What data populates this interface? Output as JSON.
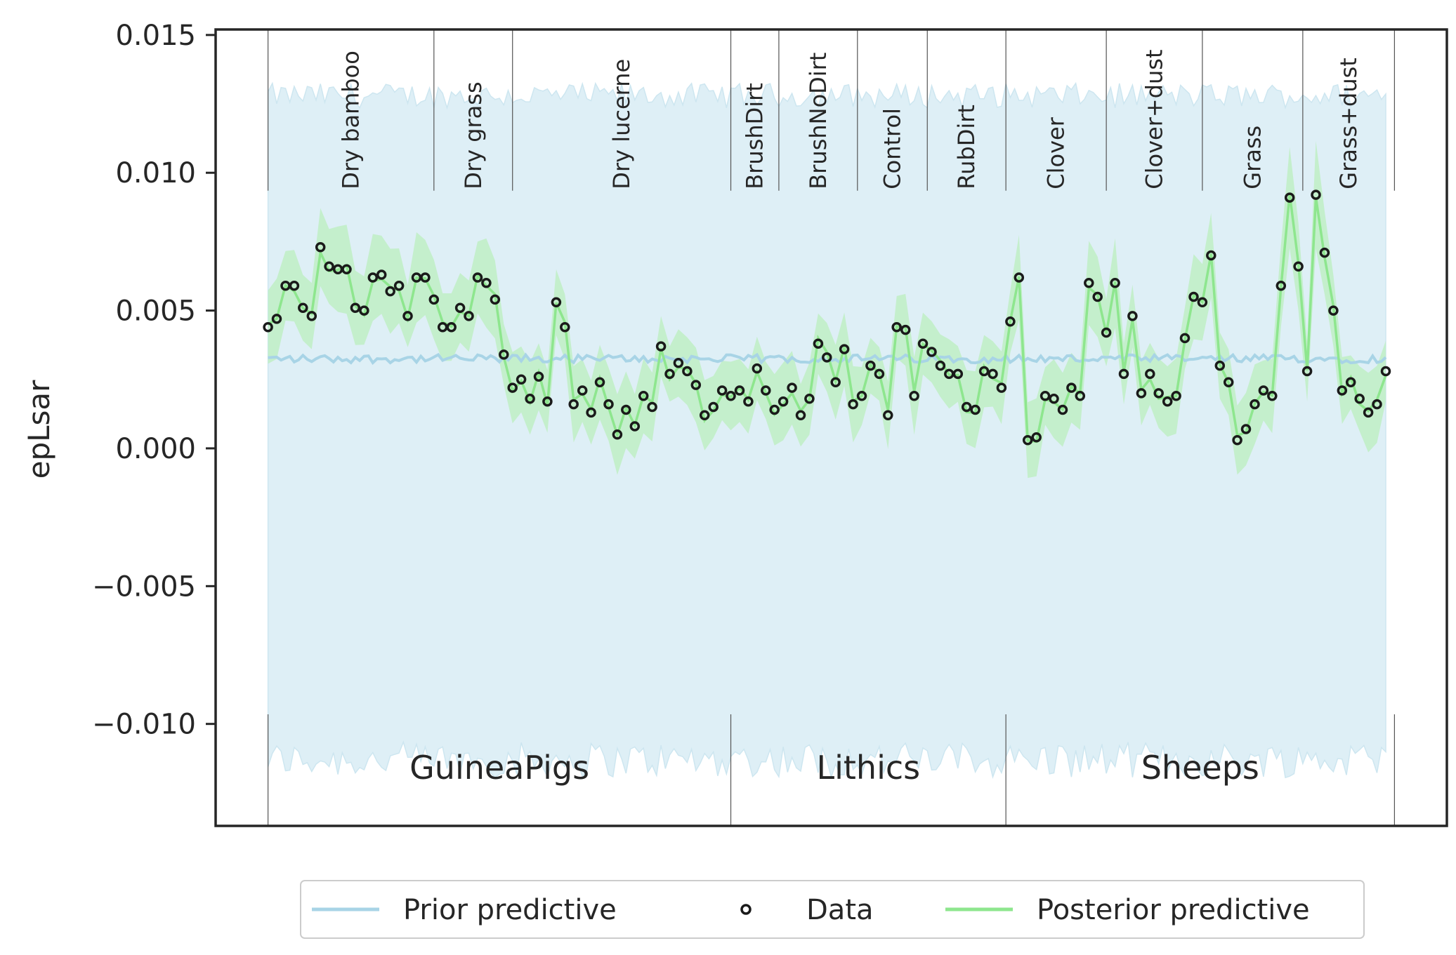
{
  "chart_data": {
    "type": "line",
    "title": "",
    "xlabel": "",
    "ylabel": "epLsar",
    "ylim": [
      -0.0137,
      0.0152
    ],
    "yticks": [
      0.015,
      0.01,
      0.005,
      0.0,
      -0.005,
      -0.01
    ],
    "ytick_labels": [
      "0.015",
      "0.010",
      "0.005",
      "0.000",
      "−0.005",
      "−0.010"
    ],
    "xlim": [
      -12,
      270
    ],
    "grid": false,
    "legend_position": "bottom-center",
    "n_points": 257,
    "groups": [
      {
        "name": "GuineaPigs",
        "start": 0,
        "end": 106
      },
      {
        "name": "Lithics",
        "start": 106,
        "end": 169
      },
      {
        "name": "Sheeps",
        "start": 169,
        "end": 258
      }
    ],
    "categories": [
      {
        "name": "Dry bamboo",
        "start": 0,
        "end": 38
      },
      {
        "name": "Dry grass",
        "start": 38,
        "end": 56
      },
      {
        "name": "Dry lucerne",
        "start": 56,
        "end": 106
      },
      {
        "name": "BrushDirt",
        "start": 106,
        "end": 117
      },
      {
        "name": "BrushNoDirt",
        "start": 117,
        "end": 135
      },
      {
        "name": "Control",
        "start": 135,
        "end": 151
      },
      {
        "name": "RubDirt",
        "start": 151,
        "end": 169
      },
      {
        "name": "Clover",
        "start": 169,
        "end": 192
      },
      {
        "name": "Clover+dust",
        "start": 192,
        "end": 214
      },
      {
        "name": "Grass",
        "start": 214,
        "end": 237
      },
      {
        "name": "Grass+dust",
        "start": 237,
        "end": 258
      }
    ],
    "series": [
      {
        "name": "Prior predictive",
        "kind": "line+band",
        "mean": 0.0034,
        "band": [
          -0.0105,
          0.0128
        ],
        "color": "#a8d4e6",
        "band_color": "#deeff6"
      },
      {
        "name": "Data",
        "kind": "scatter",
        "marker": "open-circle",
        "color": "#1a1a1a"
      },
      {
        "name": "Posterior predictive",
        "kind": "line+band",
        "color": "#8ee68e",
        "band_color": "#bfeec4"
      }
    ],
    "data_points": [
      [
        0,
        0.0044
      ],
      [
        2,
        0.0047
      ],
      [
        4,
        0.0059
      ],
      [
        6,
        0.0059
      ],
      [
        8,
        0.0051
      ],
      [
        10,
        0.0048
      ],
      [
        12,
        0.0073
      ],
      [
        14,
        0.0066
      ],
      [
        16,
        0.0065
      ],
      [
        18,
        0.0065
      ],
      [
        20,
        0.0051
      ],
      [
        22,
        0.005
      ],
      [
        24,
        0.0062
      ],
      [
        26,
        0.0063
      ],
      [
        28,
        0.0057
      ],
      [
        30,
        0.0059
      ],
      [
        32,
        0.0048
      ],
      [
        34,
        0.0062
      ],
      [
        36,
        0.0062
      ],
      [
        38,
        0.0054
      ],
      [
        40,
        0.0044
      ],
      [
        42,
        0.0044
      ],
      [
        44,
        0.0051
      ],
      [
        46,
        0.0048
      ],
      [
        48,
        0.0062
      ],
      [
        50,
        0.006
      ],
      [
        52,
        0.0054
      ],
      [
        54,
        0.0034
      ],
      [
        56,
        0.0022
      ],
      [
        58,
        0.0025
      ],
      [
        60,
        0.0018
      ],
      [
        62,
        0.0026
      ],
      [
        64,
        0.0017
      ],
      [
        66,
        0.0053
      ],
      [
        68,
        0.0044
      ],
      [
        70,
        0.0016
      ],
      [
        72,
        0.0021
      ],
      [
        74,
        0.0013
      ],
      [
        76,
        0.0024
      ],
      [
        78,
        0.0016
      ],
      [
        80,
        0.0005
      ],
      [
        82,
        0.0014
      ],
      [
        84,
        0.0008
      ],
      [
        86,
        0.0019
      ],
      [
        88,
        0.0015
      ],
      [
        90,
        0.0037
      ],
      [
        92,
        0.0027
      ],
      [
        94,
        0.0031
      ],
      [
        96,
        0.0028
      ],
      [
        98,
        0.0023
      ],
      [
        100,
        0.0012
      ],
      [
        102,
        0.0015
      ],
      [
        104,
        0.0021
      ],
      [
        106,
        0.0019
      ],
      [
        108,
        0.0021
      ],
      [
        110,
        0.0017
      ],
      [
        112,
        0.0029
      ],
      [
        114,
        0.0021
      ],
      [
        116,
        0.0014
      ],
      [
        118,
        0.0017
      ],
      [
        120,
        0.0022
      ],
      [
        122,
        0.0012
      ],
      [
        124,
        0.0018
      ],
      [
        126,
        0.0038
      ],
      [
        128,
        0.0033
      ],
      [
        130,
        0.0024
      ],
      [
        132,
        0.0036
      ],
      [
        134,
        0.0016
      ],
      [
        136,
        0.0019
      ],
      [
        138,
        0.003
      ],
      [
        140,
        0.0027
      ],
      [
        142,
        0.0012
      ],
      [
        144,
        0.0044
      ],
      [
        146,
        0.0043
      ],
      [
        148,
        0.0019
      ],
      [
        150,
        0.0038
      ],
      [
        152,
        0.0035
      ],
      [
        154,
        0.003
      ],
      [
        156,
        0.0027
      ],
      [
        158,
        0.0027
      ],
      [
        160,
        0.0015
      ],
      [
        162,
        0.0014
      ],
      [
        164,
        0.0028
      ],
      [
        166,
        0.0027
      ],
      [
        168,
        0.0022
      ],
      [
        170,
        0.0046
      ],
      [
        172,
        0.0062
      ],
      [
        174,
        0.0003
      ],
      [
        176,
        0.0004
      ],
      [
        178,
        0.0019
      ],
      [
        180,
        0.0018
      ],
      [
        182,
        0.0014
      ],
      [
        184,
        0.0022
      ],
      [
        186,
        0.0019
      ],
      [
        188,
        0.006
      ],
      [
        190,
        0.0055
      ],
      [
        192,
        0.0042
      ],
      [
        194,
        0.006
      ],
      [
        196,
        0.0027
      ],
      [
        198,
        0.0048
      ],
      [
        200,
        0.002
      ],
      [
        202,
        0.0027
      ],
      [
        204,
        0.002
      ],
      [
        206,
        0.0017
      ],
      [
        208,
        0.0019
      ],
      [
        210,
        0.004
      ],
      [
        212,
        0.0055
      ],
      [
        214,
        0.0053
      ],
      [
        216,
        0.007
      ],
      [
        218,
        0.003
      ],
      [
        220,
        0.0024
      ],
      [
        222,
        0.0003
      ],
      [
        224,
        0.0007
      ],
      [
        226,
        0.0016
      ],
      [
        228,
        0.0021
      ],
      [
        230,
        0.0019
      ],
      [
        232,
        0.0059
      ],
      [
        234,
        0.0091
      ],
      [
        236,
        0.0066
      ],
      [
        238,
        0.0028
      ],
      [
        240,
        0.0092
      ],
      [
        242,
        0.0071
      ],
      [
        244,
        0.005
      ],
      [
        246,
        0.0021
      ],
      [
        248,
        0.0024
      ],
      [
        250,
        0.0018
      ],
      [
        252,
        0.0013
      ],
      [
        254,
        0.0016
      ],
      [
        256,
        0.0028
      ]
    ]
  },
  "legend": {
    "prior": "Prior predictive",
    "data": "Data",
    "posterior": "Posterior predictive"
  }
}
